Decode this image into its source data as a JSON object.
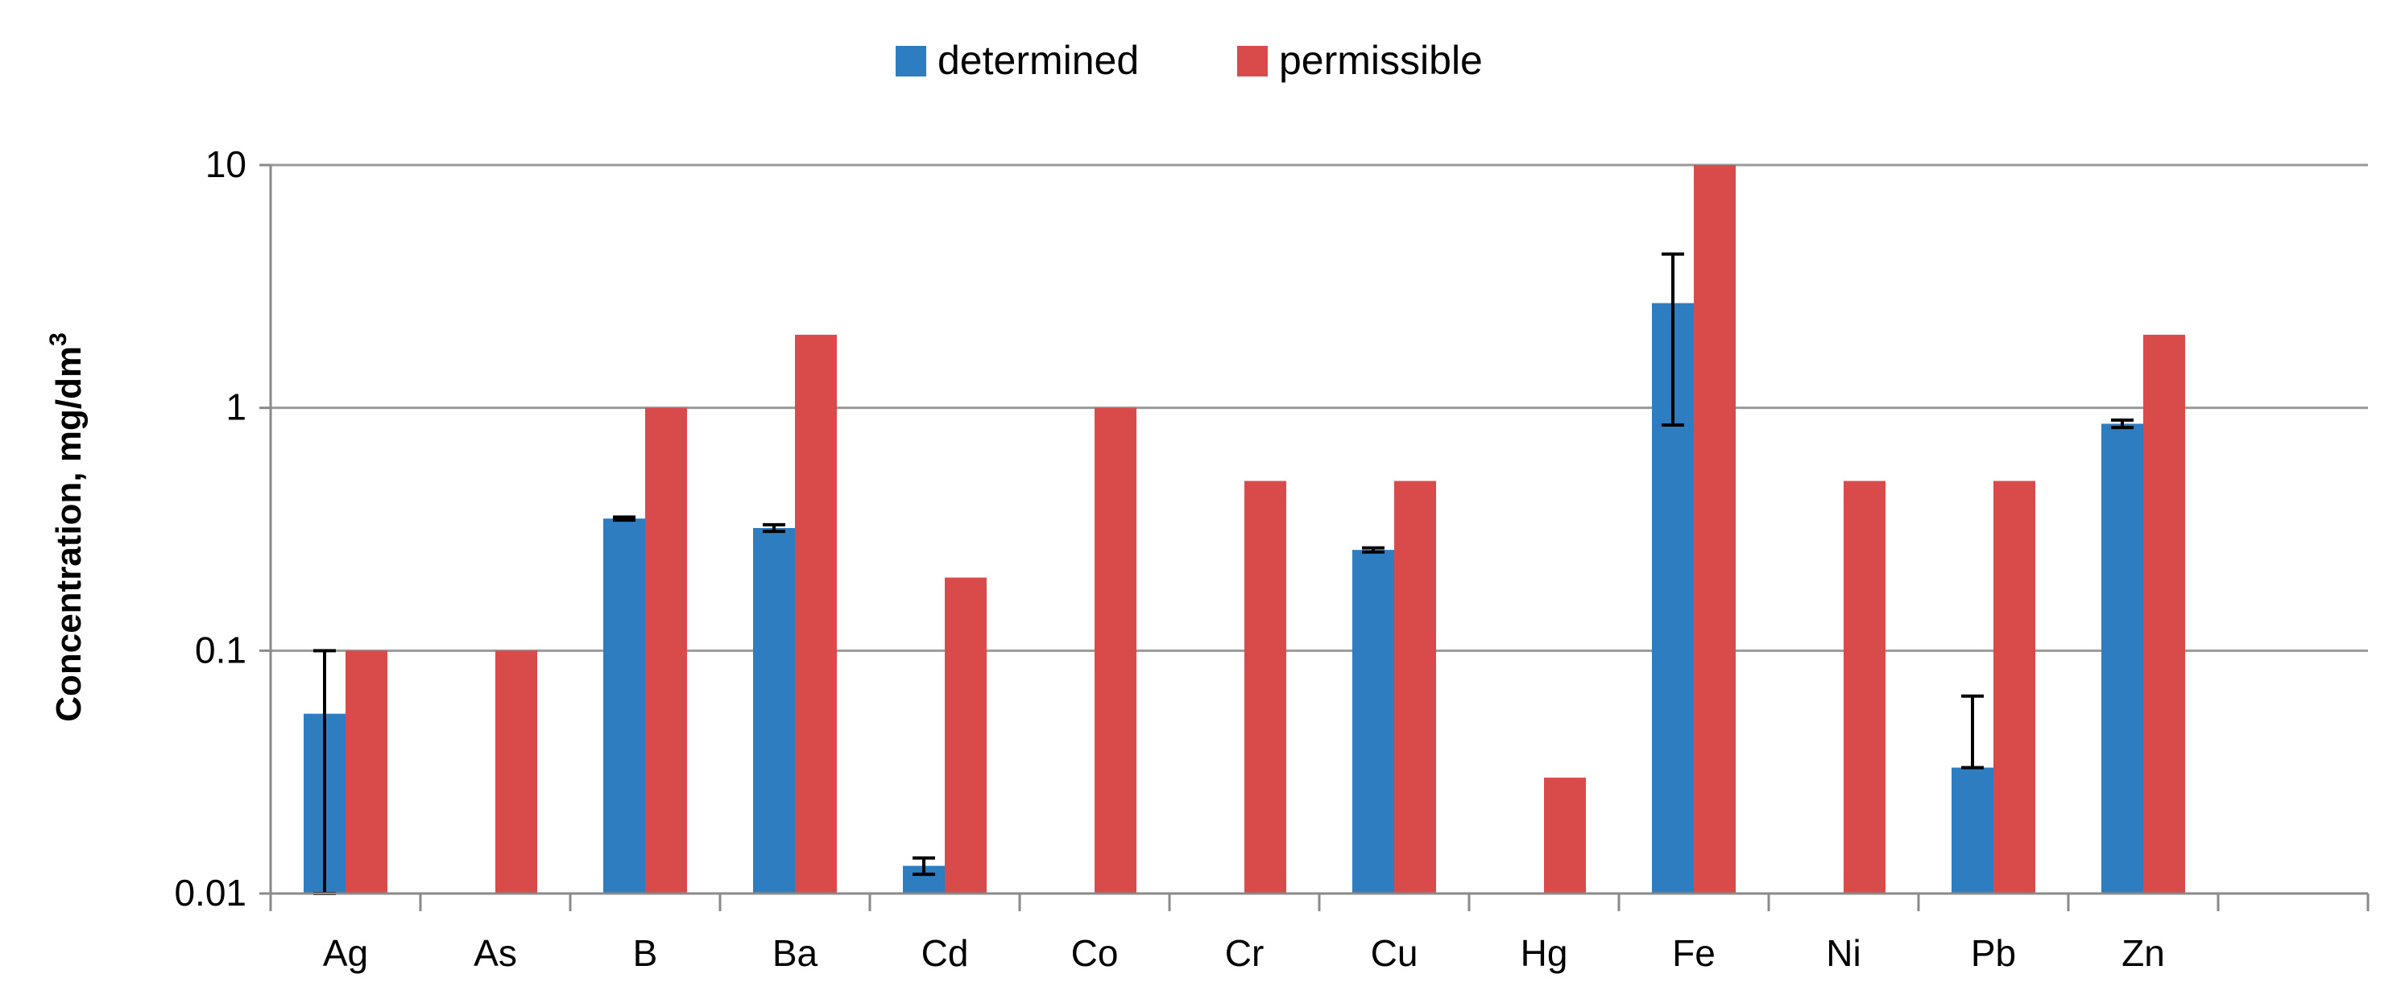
{
  "chart_data": {
    "type": "bar",
    "scale": "log",
    "categories": [
      "Ag",
      "As",
      "B",
      "Ba",
      "Cd",
      "Co",
      "Cr",
      "Cu",
      "Hg",
      "Fe",
      "Ni",
      "Pb",
      "Zn"
    ],
    "series": [
      {
        "name": "determined",
        "color": "#2E7DC1",
        "values": [
          0.055,
          null,
          0.35,
          0.32,
          0.013,
          null,
          null,
          0.26,
          null,
          2.7,
          null,
          0.033,
          0.86
        ],
        "error": [
          [
            0.01,
            0.1
          ],
          null,
          [
            0.345,
            0.355
          ],
          [
            0.31,
            0.33
          ],
          [
            0.012,
            0.014
          ],
          null,
          null,
          [
            0.255,
            0.265
          ],
          null,
          [
            0.85,
            4.3
          ],
          null,
          [
            0.033,
            0.065
          ],
          [
            0.83,
            0.89
          ]
        ]
      },
      {
        "name": "permissible",
        "color": "#D94A4A",
        "values": [
          0.1,
          0.1,
          1.0,
          2.0,
          0.2,
          1.0,
          0.5,
          0.5,
          0.03,
          10.0,
          0.5,
          0.5,
          2.0
        ]
      }
    ],
    "ylabel": "Concentration, mg/dm",
    "ylabel_sup": "3",
    "ylim": [
      0.01,
      10
    ],
    "yticks": [
      {
        "value": 10,
        "label": "10"
      },
      {
        "value": 1,
        "label": "1"
      },
      {
        "value": 0.1,
        "label": "0.1"
      },
      {
        "value": 0.01,
        "label": "0.01"
      }
    ],
    "grid": true,
    "legend": "top-center"
  }
}
